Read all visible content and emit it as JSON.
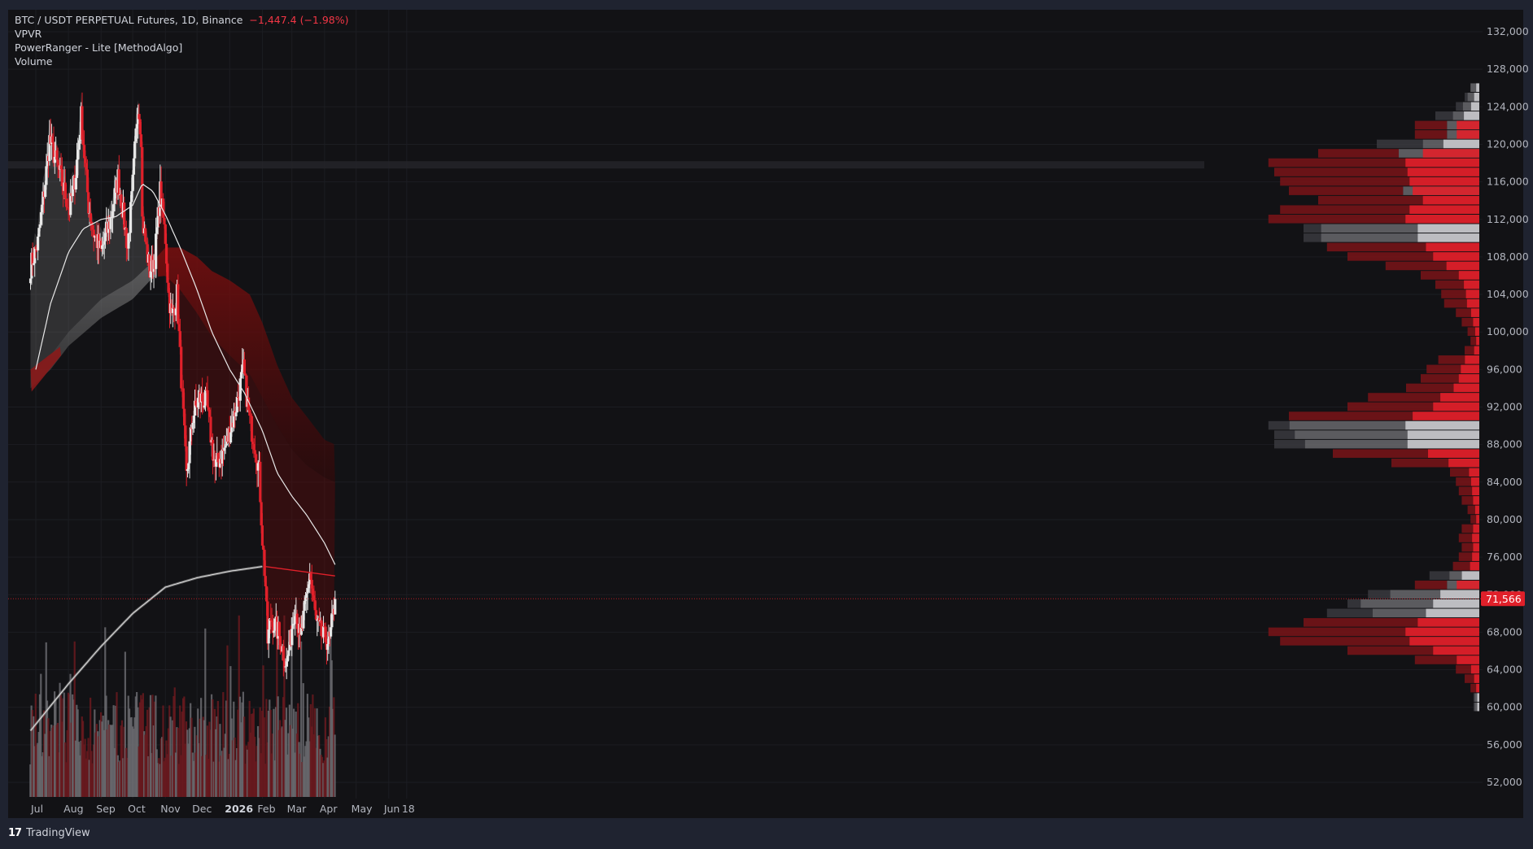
{
  "header": {
    "symbol": "BTC / USDT PERPETUAL Futures, 1D, Binance",
    "change": "−1,447.4 (−1.98%)",
    "indicators": [
      "VPVR",
      "PowerRanger - Lite [MethodAlgo]",
      "Volume"
    ]
  },
  "brand": {
    "logo": "17",
    "name": "TradingView"
  },
  "colors": {
    "background": "#121215",
    "frame": "#1f2330",
    "up": "#e6e6e6",
    "down": "#e0202a",
    "band_red": "#8a1010",
    "band_grey": "#8c8c8c",
    "price_tag": "#e0202a"
  },
  "chart_data": {
    "type": "candlestick",
    "y_axis": {
      "ylim": [
        50000,
        134000
      ],
      "tick_values": [
        52000,
        56000,
        60000,
        64000,
        68000,
        72000,
        76000,
        80000,
        84000,
        88000,
        92000,
        96000,
        100000,
        104000,
        108000,
        112000,
        116000,
        120000,
        124000,
        128000,
        132000
      ],
      "tick_labels": [
        "52,000",
        "56,000",
        "60,000",
        "64,000",
        "68,000",
        "72,000",
        "76,000",
        "80,000",
        "84,000",
        "88,000",
        "92,000",
        "96,000",
        "100,000",
        "104,000",
        "108,000",
        "112,000",
        "116,000",
        "120,000",
        "124,000",
        "128,000",
        "132,000"
      ],
      "side": "right"
    },
    "x_axis": {
      "tick_labels": [
        "Jul",
        "Aug",
        "Sep",
        "Oct",
        "Nov",
        "Dec",
        "2026",
        "Feb",
        "Mar",
        "Apr",
        "May",
        "Jun",
        "18"
      ],
      "bold_labels": [
        "2026"
      ]
    },
    "last_price": {
      "value": 71566,
      "label": "71,566"
    },
    "price_anchors": [
      [
        "2025-06-26",
        107000
      ],
      [
        "2025-07-03",
        109500
      ],
      [
        "2025-07-10",
        116000
      ],
      [
        "2025-07-14",
        120500
      ],
      [
        "2025-07-22",
        117500
      ],
      [
        "2025-08-02",
        113000
      ],
      [
        "2025-08-08",
        117000
      ],
      [
        "2025-08-13",
        123000
      ],
      [
        "2025-08-20",
        113500
      ],
      [
        "2025-08-25",
        110500
      ],
      [
        "2025-09-01",
        108500
      ],
      [
        "2025-09-10",
        112000
      ],
      [
        "2025-09-17",
        116500
      ],
      [
        "2025-09-22",
        112500
      ],
      [
        "2025-09-26",
        109000
      ],
      [
        "2025-09-30",
        114000
      ],
      [
        "2025-10-06",
        124500
      ],
      [
        "2025-10-09",
        121000
      ],
      [
        "2025-10-10",
        112000
      ],
      [
        "2025-10-17",
        106500
      ],
      [
        "2025-10-22",
        108000
      ],
      [
        "2025-10-27",
        115000
      ],
      [
        "2025-11-01",
        110000
      ],
      [
        "2025-11-04",
        104000
      ],
      [
        "2025-11-07",
        101500
      ],
      [
        "2025-11-12",
        104000
      ],
      [
        "2025-11-17",
        93000
      ],
      [
        "2025-11-21",
        84500
      ],
      [
        "2025-11-27",
        91000
      ],
      [
        "2025-12-03",
        93000
      ],
      [
        "2025-12-10",
        92500
      ],
      [
        "2025-12-18",
        85500
      ],
      [
        "2025-12-27",
        87500
      ],
      [
        "2026-01-05",
        91000
      ],
      [
        "2026-01-14",
        96000
      ],
      [
        "2026-01-20",
        90500
      ],
      [
        "2026-01-25",
        88000
      ],
      [
        "2026-01-29",
        85000
      ],
      [
        "2026-02-01",
        78000
      ],
      [
        "2026-02-04",
        73000
      ],
      [
        "2026-02-06",
        67000
      ],
      [
        "2026-02-09",
        69500
      ],
      [
        "2026-02-16",
        68000
      ],
      [
        "2026-02-24",
        64500
      ],
      [
        "2026-03-04",
        71000
      ],
      [
        "2026-03-09",
        67000
      ],
      [
        "2026-03-16",
        72500
      ],
      [
        "2026-03-18",
        74500
      ],
      [
        "2026-03-24",
        69000
      ],
      [
        "2026-03-30",
        67500
      ],
      [
        "2026-04-06",
        67000
      ],
      [
        "2026-04-11",
        71566
      ]
    ],
    "ma_short": [
      [
        "2025-07-01",
        96000
      ],
      [
        "2025-07-15",
        103000
      ],
      [
        "2025-08-01",
        108500
      ],
      [
        "2025-08-15",
        111000
      ],
      [
        "2025-09-01",
        112000
      ],
      [
        "2025-09-15",
        112300
      ],
      [
        "2025-10-01",
        113500
      ],
      [
        "2025-10-10",
        115800
      ],
      [
        "2025-10-20",
        115000
      ],
      [
        "2025-11-01",
        112500
      ],
      [
        "2025-11-15",
        109000
      ],
      [
        "2025-12-01",
        104500
      ],
      [
        "2025-12-15",
        100000
      ],
      [
        "2026-01-01",
        96000
      ],
      [
        "2026-01-15",
        93500
      ],
      [
        "2026-02-01",
        89500
      ],
      [
        "2026-02-15",
        85000
      ],
      [
        "2026-03-01",
        82500
      ],
      [
        "2026-03-15",
        80500
      ],
      [
        "2026-04-01",
        77500
      ],
      [
        "2026-04-11",
        75200
      ]
    ],
    "ma_long": [
      [
        "2025-06-26",
        57500
      ],
      [
        "2025-08-01",
        62500
      ],
      [
        "2025-09-01",
        66500
      ],
      [
        "2025-10-01",
        70000
      ],
      [
        "2025-11-01",
        72800
      ],
      [
        "2025-12-01",
        73800
      ],
      [
        "2026-01-01",
        74500
      ],
      [
        "2026-02-01",
        75000
      ]
    ],
    "resistance_line": {
      "from": [
        "2026-02-04",
        75000
      ],
      "to": [
        "2026-04-11",
        74000
      ]
    },
    "band_top": [
      [
        "2025-06-26",
        95500
      ],
      [
        "2025-07-15",
        97500
      ],
      [
        "2025-08-01",
        100000
      ],
      [
        "2025-09-01",
        103500
      ],
      [
        "2025-10-01",
        105500
      ],
      [
        "2025-10-20",
        107500
      ],
      [
        "2025-11-01",
        109000
      ],
      [
        "2025-11-15",
        109000
      ],
      [
        "2025-12-01",
        108000
      ],
      [
        "2025-12-15",
        106500
      ],
      [
        "2026-01-01",
        105500
      ],
      [
        "2026-01-20",
        104000
      ],
      [
        "2026-02-01",
        101000
      ],
      [
        "2026-02-15",
        96500
      ],
      [
        "2026-03-01",
        93000
      ],
      [
        "2026-03-15",
        91000
      ],
      [
        "2026-04-01",
        88500
      ],
      [
        "2026-04-11",
        88000
      ]
    ],
    "band_bottom": [
      [
        "2025-06-26",
        94000
      ],
      [
        "2025-07-15",
        96000
      ],
      [
        "2025-08-01",
        98500
      ],
      [
        "2025-09-01",
        101500
      ],
      [
        "2025-10-01",
        103500
      ],
      [
        "2025-10-20",
        105800
      ],
      [
        "2025-11-01",
        106000
      ],
      [
        "2025-11-15",
        104500
      ],
      [
        "2025-12-01",
        102000
      ],
      [
        "2025-12-15",
        99500
      ],
      [
        "2026-01-01",
        97500
      ],
      [
        "2026-01-20",
        95500
      ],
      [
        "2026-02-01",
        93000
      ],
      [
        "2026-02-15",
        90000
      ],
      [
        "2026-03-01",
        87500
      ],
      [
        "2026-03-15",
        85800
      ],
      [
        "2026-04-01",
        84500
      ],
      [
        "2026-04-11",
        84000
      ]
    ],
    "volume_profile": [
      {
        "price": 126000,
        "total": 0.03,
        "up_share": 1.0
      },
      {
        "price": 125000,
        "total": 0.05,
        "up_share": 0.8
      },
      {
        "price": 124000,
        "total": 0.08,
        "up_share": 0.7
      },
      {
        "price": 123000,
        "total": 0.15,
        "up_share": 0.6
      },
      {
        "price": 122000,
        "total": 0.22,
        "up_share": 0.5
      },
      {
        "price": 121000,
        "total": 0.22,
        "up_share": 0.5
      },
      {
        "price": 120000,
        "total": 0.35,
        "up_share": 0.55
      },
      {
        "price": 119000,
        "total": 0.55,
        "up_share": 0.5
      },
      {
        "price": 118000,
        "total": 0.72,
        "up_share": 0.0
      },
      {
        "price": 117000,
        "total": 0.7,
        "up_share": 0.0
      },
      {
        "price": 116000,
        "total": 0.68,
        "up_share": 0.0
      },
      {
        "price": 115000,
        "total": 0.65,
        "up_share": 0.4
      },
      {
        "price": 114000,
        "total": 0.55,
        "up_share": 0.0
      },
      {
        "price": 113000,
        "total": 0.68,
        "up_share": 0.0
      },
      {
        "price": 112000,
        "total": 0.72,
        "up_share": 0.0
      },
      {
        "price": 111000,
        "total": 0.6,
        "up_share": 0.9
      },
      {
        "price": 110000,
        "total": 0.6,
        "up_share": 0.9
      },
      {
        "price": 109000,
        "total": 0.52,
        "up_share": 0.0
      },
      {
        "price": 108000,
        "total": 0.45,
        "up_share": 0.0
      },
      {
        "price": 107000,
        "total": 0.32,
        "up_share": 0.0
      },
      {
        "price": 106000,
        "total": 0.2,
        "up_share": 0.0
      },
      {
        "price": 105000,
        "total": 0.15,
        "up_share": 0.0
      },
      {
        "price": 104000,
        "total": 0.13,
        "up_share": 0.0
      },
      {
        "price": 103000,
        "total": 0.12,
        "up_share": 0.0
      },
      {
        "price": 102000,
        "total": 0.08,
        "up_share": 0.0
      },
      {
        "price": 101000,
        "total": 0.06,
        "up_share": 0.0
      },
      {
        "price": 100000,
        "total": 0.04,
        "up_share": 0.0
      },
      {
        "price": 99000,
        "total": 0.03,
        "up_share": 0.0
      },
      {
        "price": 98000,
        "total": 0.05,
        "up_share": 0.0
      },
      {
        "price": 97000,
        "total": 0.14,
        "up_share": 0.0
      },
      {
        "price": 96000,
        "total": 0.18,
        "up_share": 0.0
      },
      {
        "price": 95000,
        "total": 0.2,
        "up_share": 0.0
      },
      {
        "price": 94000,
        "total": 0.25,
        "up_share": 0.0
      },
      {
        "price": 93000,
        "total": 0.38,
        "up_share": 0.0
      },
      {
        "price": 92000,
        "total": 0.45,
        "up_share": 0.0
      },
      {
        "price": 91000,
        "total": 0.65,
        "up_share": 0.0
      },
      {
        "price": 90000,
        "total": 0.72,
        "up_share": 0.9
      },
      {
        "price": 89000,
        "total": 0.7,
        "up_share": 0.9
      },
      {
        "price": 88000,
        "total": 0.7,
        "up_share": 0.85
      },
      {
        "price": 87000,
        "total": 0.5,
        "up_share": 0.0
      },
      {
        "price": 86000,
        "total": 0.3,
        "up_share": 0.0
      },
      {
        "price": 85000,
        "total": 0.1,
        "up_share": 0.0
      },
      {
        "price": 84000,
        "total": 0.08,
        "up_share": 0.0
      },
      {
        "price": 83000,
        "total": 0.07,
        "up_share": 0.0
      },
      {
        "price": 82000,
        "total": 0.06,
        "up_share": 0.0
      },
      {
        "price": 81000,
        "total": 0.04,
        "up_share": 0.0
      },
      {
        "price": 80000,
        "total": 0.03,
        "up_share": 0.0
      },
      {
        "price": 79000,
        "total": 0.06,
        "up_share": 0.0
      },
      {
        "price": 78000,
        "total": 0.07,
        "up_share": 0.0
      },
      {
        "price": 77000,
        "total": 0.06,
        "up_share": 0.0
      },
      {
        "price": 76000,
        "total": 0.07,
        "up_share": 0.0
      },
      {
        "price": 75000,
        "total": 0.09,
        "up_share": 0.0
      },
      {
        "price": 74000,
        "total": 0.17,
        "up_share": 0.6
      },
      {
        "price": 73000,
        "total": 0.22,
        "up_share": 0.5
      },
      {
        "price": 72000,
        "total": 0.38,
        "up_share": 0.8
      },
      {
        "price": 71000,
        "total": 0.45,
        "up_share": 0.9
      },
      {
        "price": 70000,
        "total": 0.52,
        "up_share": 0.7
      },
      {
        "price": 69000,
        "total": 0.6,
        "up_share": 0.0
      },
      {
        "price": 68000,
        "total": 0.72,
        "up_share": 0.0
      },
      {
        "price": 67000,
        "total": 0.68,
        "up_share": 0.0
      },
      {
        "price": 66000,
        "total": 0.45,
        "up_share": 0.0
      },
      {
        "price": 65000,
        "total": 0.22,
        "up_share": 0.0
      },
      {
        "price": 64000,
        "total": 0.08,
        "up_share": 0.0
      },
      {
        "price": 63000,
        "total": 0.05,
        "up_share": 0.0
      },
      {
        "price": 62000,
        "total": 0.03,
        "up_share": 0.0
      },
      {
        "price": 61000,
        "total": 0.02,
        "up_share": 0.8
      },
      {
        "price": 60000,
        "total": 0.02,
        "up_share": 0.8
      }
    ],
    "grid": true,
    "legend_position": "top-left"
  }
}
